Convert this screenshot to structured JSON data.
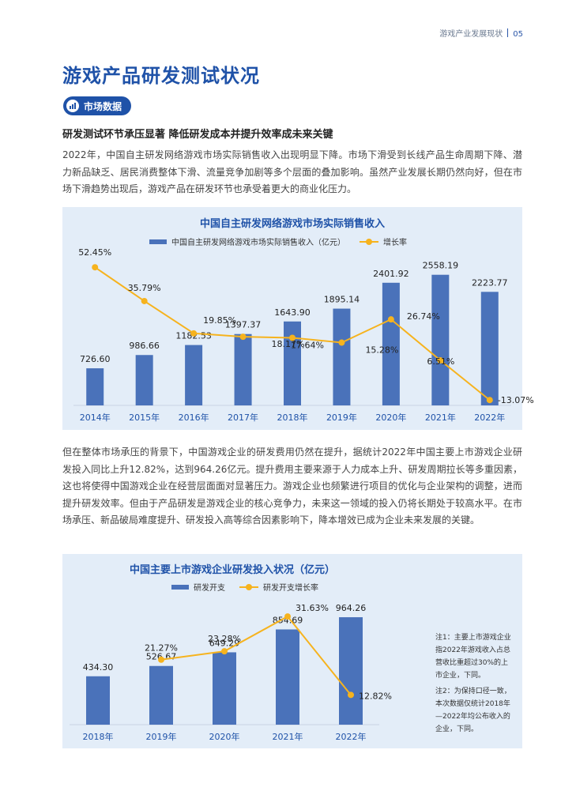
{
  "header": {
    "section": "游戏产业发展现状",
    "page": "05"
  },
  "title": "游戏产品研发测试状况",
  "badge": "市场数据",
  "subhead": "研发测试环节承压显著  降低研发成本并提升效率成未来关键",
  "para1": "2022年，中国自主研发网络游戏市场实际销售收入出现明显下降。市场下滑受到长线产品生命周期下降、潜力新品缺乏、居民消费整体下滑、流量竞争加剧等多个层面的叠加影响。虽然产业发展长期仍然向好，但在市场下滑趋势出现后，游戏产品在研发环节也承受着更大的商业化压力。",
  "para2": "但在整体市场承压的背景下，中国游戏企业的研发费用仍然在提升，据统计2022年中国主要上市游戏企业研发投入同比上升12.82%，达到964.26亿元。提升费用主要来源于人力成本上升、研发周期拉长等多重因素，这也将使得中国游戏企业在经营层面面对显著压力。游戏企业也频繁进行项目的优化与企业架构的调整，进而提升研发效率。但由于产品研发是游戏企业的核心竞争力，未来这一领域的投入仍将长期处于较高水平。在市场承压、新品破局难度提升、研发投入高等综合因素影响下，降本增效已成为企业未来发展的关键。",
  "colors": {
    "bar": "#4a72ba",
    "line": "#f6b31e",
    "title": "#1f52a8"
  },
  "chart_data": [
    {
      "type": "bar+line",
      "title": "中国自主研发网络游戏市场实际销售收入",
      "categories": [
        "2014年",
        "2015年",
        "2016年",
        "2017年",
        "2018年",
        "2019年",
        "2020年",
        "2021年",
        "2022年"
      ],
      "series": [
        {
          "name": "中国自主研发网络游戏市场实际销售收入（亿元）",
          "type": "bar",
          "values": [
            726.6,
            986.66,
            1182.53,
            1397.37,
            1643.9,
            1895.14,
            2401.92,
            2558.19,
            2223.77
          ],
          "labels": [
            "726.60",
            "986.66",
            "1182.53",
            "1397.37",
            "1643.90",
            "1895.14",
            "2401.92",
            "2558.19",
            "2223.77"
          ]
        },
        {
          "name": "增长率",
          "type": "line",
          "values": [
            52.45,
            35.79,
            19.85,
            18.17,
            17.64,
            15.28,
            26.74,
            6.51,
            -13.07
          ],
          "labels": [
            "52.45%",
            "35.79%",
            "19.85%",
            "18.17%",
            "17.64%",
            "15.28%",
            "26.74%",
            "6.51%",
            "-13.07%"
          ]
        }
      ],
      "bar_max": 2600,
      "line_range": [
        -20,
        58
      ]
    },
    {
      "type": "bar+line",
      "title": "中国主要上市游戏企业研发投入状况（亿元）",
      "categories": [
        "2018年",
        "2019年",
        "2020年",
        "2021年",
        "2022年"
      ],
      "series": [
        {
          "name": "研发开支",
          "type": "bar",
          "values": [
            434.3,
            526.67,
            649.29,
            854.69,
            964.26
          ],
          "labels": [
            "434.30",
            "526.67",
            "649.29",
            "854.69",
            "964.26"
          ]
        },
        {
          "name": "研发开支增长率",
          "type": "line",
          "values": [
            null,
            21.27,
            23.28,
            31.63,
            12.82
          ],
          "labels": [
            "",
            "21.27%",
            "23.28%",
            "31.63%",
            "12.82%"
          ]
        }
      ],
      "bar_max": 1000,
      "line_range": [
        0,
        36
      ]
    }
  ],
  "notes": [
    "注1：主要上市游戏企业指2022年游戏收入占总营收比重超过30%的上市企业，下同。",
    "注2：为保持口径一致，本次数据仅统计2018年—2022年均公布收入的企业，下同。"
  ]
}
